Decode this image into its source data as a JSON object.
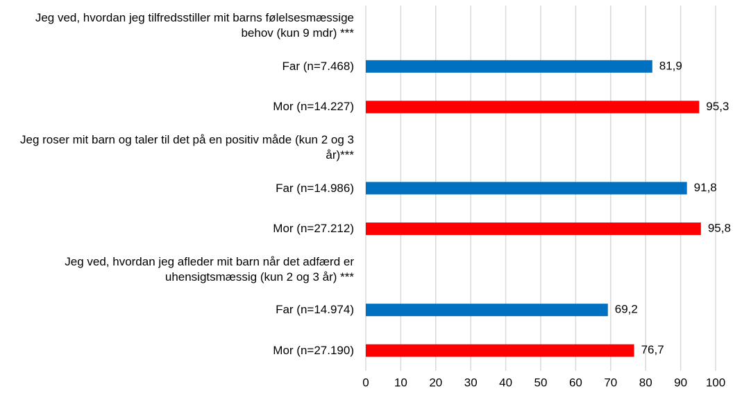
{
  "chart_data": {
    "type": "barh",
    "categories": [
      "Jeg ved, hvordan jeg tilfredsstiller mit barns følelsesmæssige behov (kun 9 mdr) ***",
      "Far (n=7.468)",
      "Mor (n=14.227)",
      "Jeg roser mit barn og taler til det på en positiv måde (kun 2 og 3 år)***",
      "Far (n=14.986)",
      "Mor (n=27.212)",
      "Jeg ved, hvordan jeg afleder mit barn når det adfærd er uhensigtsmæssig (kun 2 og 3 år) ***",
      "Far (n=14.974)",
      "Mor (n=27.190)"
    ],
    "values": [
      null,
      81.9,
      95.3,
      null,
      91.8,
      95.8,
      null,
      69.2,
      76.7
    ],
    "value_labels": [
      null,
      "81,9",
      "95,3",
      null,
      "91,8",
      "95,8",
      null,
      "69,2",
      "76,7"
    ],
    "colors": [
      null,
      "#0070c0",
      "#ff0000",
      null,
      "#0070c0",
      "#ff0000",
      null,
      "#0070c0",
      "#ff0000"
    ],
    "xlim": [
      0,
      100
    ],
    "xticks": [
      0,
      10,
      20,
      30,
      40,
      50,
      60,
      70,
      80,
      90,
      100
    ],
    "grid": true
  }
}
